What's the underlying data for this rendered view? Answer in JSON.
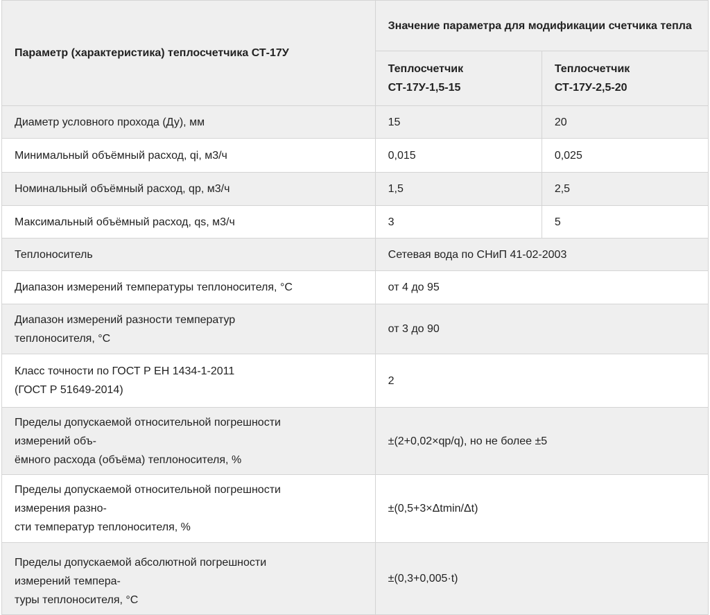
{
  "header": {
    "param_label": "Параметр (характеристика) теплосчетчика СТ-17У",
    "value_group_label": "Значение параметра для модификации счетчика тепла",
    "mod1_line1": "Теплосчетчик",
    "mod1_line2": "СТ-17У-1,5-15",
    "mod2_line1": "Теплосчетчик",
    "mod2_line2": "СТ-17У-2,5-20"
  },
  "rows": [
    {
      "param": "Диаметр условного прохода (Ду), мм",
      "v1": "15",
      "v2": "20"
    },
    {
      "param": "Минимальный объёмный расход, qi, м3/ч",
      "v1": "0,015",
      "v2": "0,025"
    },
    {
      "param": "Номинальный объёмный расход, qp, м3/ч",
      "v1": "1,5",
      "v2": "2,5"
    },
    {
      "param": "Максимальный объёмный расход, qs, м3/ч",
      "v1": "3",
      "v2": "5"
    },
    {
      "param": "Теплоноситель",
      "value": "Сетевая вода по СНиП 41-02-2003"
    },
    {
      "param": "Диапазон измерений температуры теплоносителя, °С",
      "value": "от 4 до 95"
    },
    {
      "param_l1": "Диапазон измерений разности температур",
      "param_l2": "теплоносителя, °С",
      "value": "от 3 до 90"
    },
    {
      "param_l1": "Класс точности по ГОСТ Р ЕН 1434-1-2011",
      "param_l2": "(ГОСТ Р 51649-2014)",
      "value": "2"
    },
    {
      "param_l1": "Пределы допускаемой относительной погрешности",
      "param_l2": "измерений объ-",
      "param_l3": "ёмного расхода (объёма) теплоносителя, %",
      "value": "±(2+0,02×qр/q), но не более ±5"
    },
    {
      "param_l1": "Пределы допускаемой относительной погрешности",
      "param_l2": "измерения разно-",
      "param_l3": "сти температур теплоносителя, %",
      "value": "±(0,5+3×Δtmin/Δt)"
    },
    {
      "param_l1": "Пределы допускаемой абсолютной погрешности",
      "param_l2": "измерений темпера-",
      "param_l3": "туры теплоносителя, °С",
      "value": "±(0,3+0,005·t)"
    }
  ]
}
